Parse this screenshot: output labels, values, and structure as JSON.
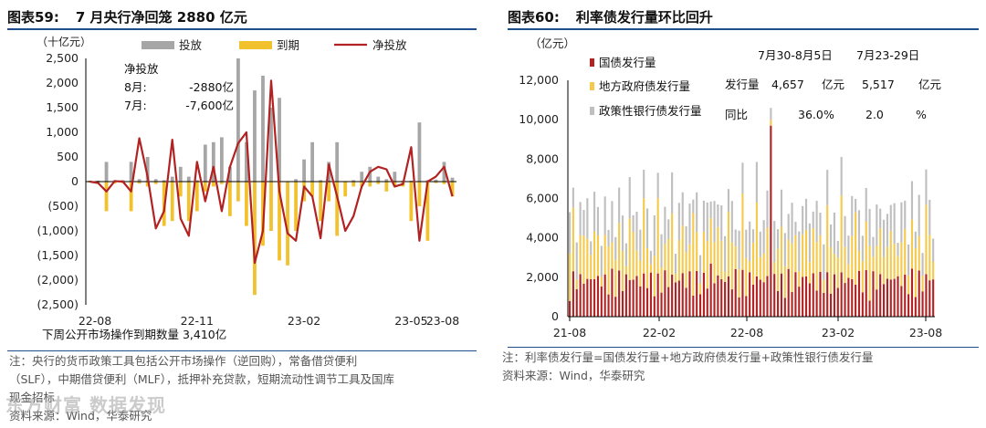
{
  "left": {
    "title_label": "图表59:",
    "title_text": "7 月央行净回笼 2880 亿元",
    "notes": [
      "注：央行的货币政策工具包括公开市场操作（逆回购），常备借贷便利",
      "（SLF），中期借贷便利（MLF），抵押补充贷款，短期流动性调节工具及国库",
      "现金招标"
    ],
    "source": "资料来源：Wind，华泰研究",
    "watermark": "东方财富 数据发现"
  },
  "right": {
    "title_label": "图表60:",
    "title_text": "利率债发行量环比回升",
    "notes": [
      "注：利率债发行量=国债发行量+地方政府债发行量+政策性银行债发行量"
    ],
    "source": "资料来源：Wind，华泰研究"
  },
  "chart_data": [
    {
      "type": "bar",
      "unit_label": "（十亿元）",
      "ylim": [
        -2500,
        2500
      ],
      "yticks": [
        2500,
        2000,
        1500,
        1000,
        500,
        0,
        -500,
        -1000,
        -1500,
        -2000,
        -2500
      ],
      "ytick_labels": [
        "2,500",
        "2,000",
        "1,500",
        "1,000",
        "500",
        "0",
        "(500)",
        "(1,000)",
        "(1,500)",
        "(2,000)",
        "(2,500)"
      ],
      "xtick_labels": [
        "22-08",
        "22-11",
        "23-02",
        "23-05",
        "23-08"
      ],
      "xtick_positions": [
        0,
        13,
        26,
        39,
        52
      ],
      "legend": [
        "投放",
        "到期",
        "净投放"
      ],
      "colors": {
        "投放": "#a6a6a6",
        "到期": "#f2c12e",
        "净投放": "#b22222"
      },
      "annotation": {
        "heading": "净投放",
        "rows": [
          {
            "label": "8月:",
            "value": "-2880亿"
          },
          {
            "label": "7月:",
            "value": "-7,600亿"
          }
        ]
      },
      "footer": "下周公开市场操作到期数量 3,410亿",
      "series": [
        {
          "name": "投放",
          "values": [
            20,
            20,
            400,
            30,
            30,
            400,
            50,
            500,
            50,
            30,
            100,
            300,
            100,
            30,
            750,
            800,
            900,
            300,
            2500,
            800,
            1850,
            2150,
            1500,
            1700,
            0,
            50,
            450,
            800,
            30,
            400,
            800,
            10,
            30,
            200,
            300,
            100,
            50,
            200,
            20,
            20,
            1200,
            30,
            40,
            400,
            80
          ]
        },
        {
          "name": "到期",
          "values": [
            -20,
            -30,
            -600,
            -40,
            -30,
            -600,
            -40,
            -100,
            -50,
            -900,
            -800,
            -300,
            -800,
            -600,
            -200,
            -100,
            -50,
            -700,
            -400,
            -900,
            -2300,
            -1300,
            -1000,
            -1600,
            -1700,
            -1000,
            -400,
            -300,
            -800,
            -400,
            -1100,
            -300,
            -100,
            -100,
            -100,
            -50,
            -200,
            -100,
            -100,
            -800,
            -500,
            -1200,
            -30,
            -50,
            -300
          ]
        },
        {
          "name": "净投放",
          "values": [
            0,
            -30,
            -200,
            10,
            0,
            -200,
            880,
            100,
            -950,
            -600,
            850,
            -750,
            -1100,
            400,
            -400,
            300,
            -600,
            300,
            780,
            1000,
            -1650,
            -1000,
            2050,
            -200,
            -1050,
            -1200,
            -100,
            -300,
            -1150,
            350,
            -300,
            -1000,
            -700,
            -100,
            200,
            300,
            250,
            -100,
            -50,
            700,
            -1200,
            0,
            100,
            300,
            -300
          ]
        }
      ]
    },
    {
      "type": "bar",
      "unit_label": "（亿元）",
      "ylim": [
        0,
        12000
      ],
      "yticks": [
        0,
        2000,
        4000,
        6000,
        8000,
        10000,
        12000
      ],
      "ytick_labels": [
        "0",
        "2,000",
        "4,000",
        "6,000",
        "8,000",
        "10,000",
        "12,000"
      ],
      "xtick_labels": [
        "21-08",
        "22-02",
        "22-08",
        "23-02",
        "23-08"
      ],
      "legend": [
        "国债发行量",
        "地方政府债发行量",
        "政策性银行债发行量"
      ],
      "colors": {
        "国债发行量": "#b22222",
        "地方政府债发行量": "#f5c94c",
        "政策性银行债发行量": "#bfbfbf"
      },
      "table": {
        "headers": [
          "7月30-8月5日",
          "7月23-29日"
        ],
        "rows": [
          {
            "label": "发行量",
            "values": [
              "4,657",
              "5,517"
            ],
            "unit": "亿元"
          },
          {
            "label": "同比",
            "values": [
              "36.0",
              "2.0"
            ],
            "unit": "%"
          }
        ]
      }
    }
  ]
}
